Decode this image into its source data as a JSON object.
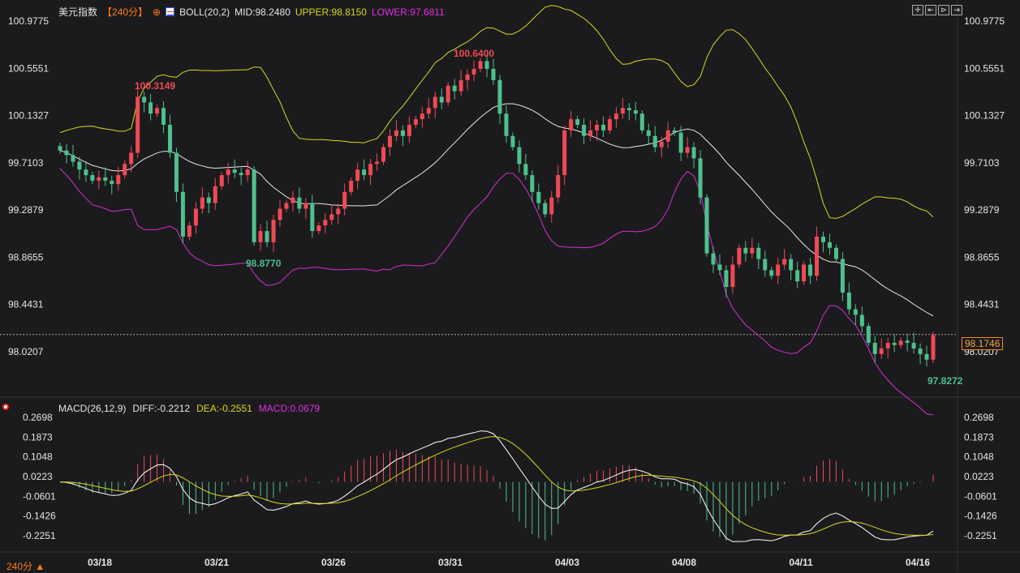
{
  "header": {
    "symbol": "美元指数",
    "period": "【240分】",
    "indicator": "BOLL(20,2)",
    "mid": "MID:98.2480",
    "upper": "UPPER:98.8150",
    "lower": "LOWER:97.6811"
  },
  "macd_header": {
    "name": "MACD(26,12,9)",
    "diff": "DIFF:-0.2212",
    "dea": "DEA:-0.2551",
    "macd": "MACD:0.0679"
  },
  "toolbar": [
    "crosshair",
    "zoom-left",
    "zoom-right",
    "fit"
  ],
  "period_selector": "240分 ▲",
  "current_price": "98.1746",
  "colors": {
    "up": "#ef4a55",
    "down": "#4fc08d",
    "mid": "#e8e8e8",
    "upper": "#d8d81e",
    "lower": "#d62ed6",
    "diff": "#ffffff",
    "dea": "#d8d81e"
  },
  "chart_data": {
    "type": "candlestick",
    "title": "美元指数 240分",
    "price_ticks": [
      "100.9775",
      "100.5551",
      "100.1327",
      "99.7103",
      "99.2879",
      "98.8655",
      "98.4431",
      "98.0207"
    ],
    "price_range": [
      98.0207,
      100.9775
    ],
    "macd_ticks": [
      "0.2698",
      "0.1873",
      "0.1048",
      "0.0223",
      "-0.0601",
      "-0.1426",
      "-0.2251"
    ],
    "macd_range": [
      -0.2251,
      0.2698
    ],
    "x_labels": [
      "03/18",
      "03/21",
      "03/26",
      "03/31",
      "04/03",
      "04/08",
      "04/11",
      "04/16"
    ],
    "annotations": [
      {
        "text": "100.3149",
        "type": "high"
      },
      {
        "text": "98.8770",
        "type": "low"
      },
      {
        "text": "100.6400",
        "type": "high"
      },
      {
        "text": "97.8272",
        "type": "low"
      }
    ],
    "closes": [
      99.82,
      99.78,
      99.72,
      99.65,
      99.6,
      99.55,
      99.58,
      99.55,
      99.52,
      99.6,
      99.7,
      99.8,
      100.3,
      100.25,
      100.15,
      100.2,
      100.05,
      99.8,
      99.45,
      99.05,
      99.15,
      99.3,
      99.4,
      99.35,
      99.5,
      99.6,
      99.65,
      99.62,
      99.6,
      99.65,
      99.0,
      99.1,
      99.0,
      99.2,
      99.3,
      99.35,
      99.4,
      99.3,
      99.35,
      99.1,
      99.15,
      99.2,
      99.25,
      99.3,
      99.45,
      99.55,
      99.65,
      99.6,
      99.7,
      99.72,
      99.85,
      99.95,
      100.0,
      99.95,
      100.05,
      100.1,
      100.15,
      100.2,
      100.3,
      100.25,
      100.4,
      100.35,
      100.45,
      100.5,
      100.55,
      100.62,
      100.55,
      100.45,
      100.15,
      99.95,
      99.85,
      99.7,
      99.6,
      99.45,
      99.35,
      99.25,
      99.4,
      99.6,
      100.0,
      100.1,
      100.05,
      99.95,
      100.0,
      100.05,
      100.0,
      100.1,
      100.15,
      100.2,
      100.18,
      100.15,
      100.0,
      99.95,
      99.85,
      99.9,
      100.0,
      99.98,
      99.8,
      99.85,
      99.75,
      99.4,
      98.9,
      98.8,
      98.75,
      98.6,
      98.8,
      98.95,
      98.9,
      98.95,
      98.85,
      98.75,
      98.7,
      98.8,
      98.85,
      98.75,
      98.65,
      98.8,
      98.7,
      99.05,
      99.0,
      98.95,
      98.85,
      98.55,
      98.4,
      98.35,
      98.25,
      98.1,
      98.0,
      98.05,
      98.1,
      98.08,
      98.12,
      98.1,
      98.05,
      98.0,
      97.95,
      98.17
    ]
  }
}
